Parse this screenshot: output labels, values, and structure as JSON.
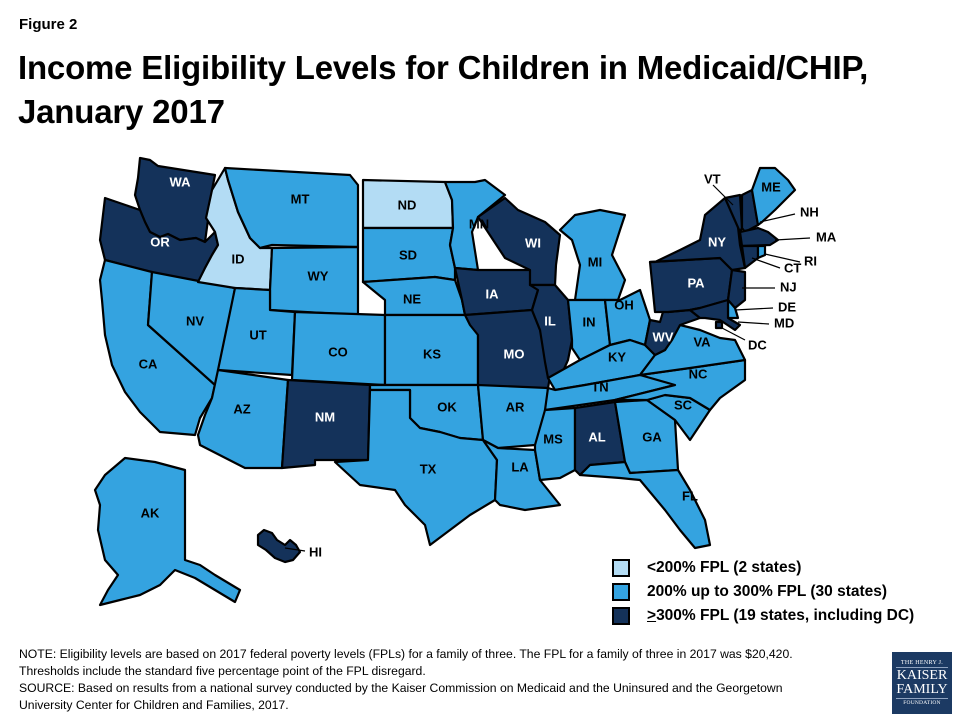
{
  "figure_label": "Figure 2",
  "title_line1": "Income Eligibility Levels for Children in Medicaid/CHIP,",
  "title_line2": "January 2017",
  "colors": {
    "lt200": "#b3dcf4",
    "200to300": "#34a3e0",
    "ge300": "#14325a",
    "border": "#000000"
  },
  "legend": [
    {
      "key": "lt200",
      "label": "<200% FPL (2 states)"
    },
    {
      "key": "200to300",
      "label": "200% up to 300% FPL (30 states)"
    },
    {
      "key": "ge300",
      "symbol": ">",
      "label": " 300% FPL (19 states, including DC)"
    }
  ],
  "chart_data": {
    "type": "choropleth",
    "title": "Income Eligibility Levels for Children in Medicaid/CHIP, January 2017",
    "categories": {
      "lt200": "<200% FPL",
      "200to300": "200% up to 300% FPL",
      "ge300": ">= 300% FPL"
    },
    "counts": {
      "lt200": 2,
      "200to300": 30,
      "ge300": 19
    },
    "states": {
      "AK": "200to300",
      "AL": "ge300",
      "AR": "200to300",
      "AZ": "200to300",
      "CA": "200to300",
      "CO": "200to300",
      "CT": "ge300",
      "DC": "ge300",
      "DE": "200to300",
      "FL": "200to300",
      "GA": "200to300",
      "HI": "ge300",
      "IA": "ge300",
      "ID": "lt200",
      "IL": "ge300",
      "IN": "200to300",
      "KS": "200to300",
      "KY": "200to300",
      "LA": "200to300",
      "MA": "ge300",
      "MD": "ge300",
      "ME": "200to300",
      "MI": "200to300",
      "MN": "200to300",
      "MO": "ge300",
      "MS": "200to300",
      "MT": "200to300",
      "NC": "200to300",
      "ND": "lt200",
      "NE": "200to300",
      "NH": "ge300",
      "NJ": "ge300",
      "NM": "ge300",
      "NV": "200to300",
      "NY": "ge300",
      "OH": "200to300",
      "OK": "200to300",
      "OR": "ge300",
      "PA": "ge300",
      "RI": "200to300",
      "SC": "200to300",
      "SD": "200to300",
      "TN": "200to300",
      "TX": "200to300",
      "UT": "200to300",
      "VA": "200to300",
      "VT": "ge300",
      "WA": "ge300",
      "WI": "ge300",
      "WV": "ge300",
      "WY": "200to300"
    }
  },
  "notes": {
    "note_line1": "NOTE: Eligibility levels are based on 2017 federal poverty levels (FPLs) for a family of three. The FPL for a family of three in 2017 was $20,420.",
    "note_line2": "Thresholds include the standard five percentage point of the FPL disregard.",
    "source_line1": "SOURCE: Based on  results from a national survey conducted by the Kaiser Commission on Medicaid and the Uninsured and the Georgetown",
    "source_line2": "University Center for Children and Families, 2017."
  },
  "logo": {
    "line1": "THE HENRY J.",
    "line2": "KAISER",
    "line3": "FAMILY",
    "line4": "FOUNDATION"
  }
}
